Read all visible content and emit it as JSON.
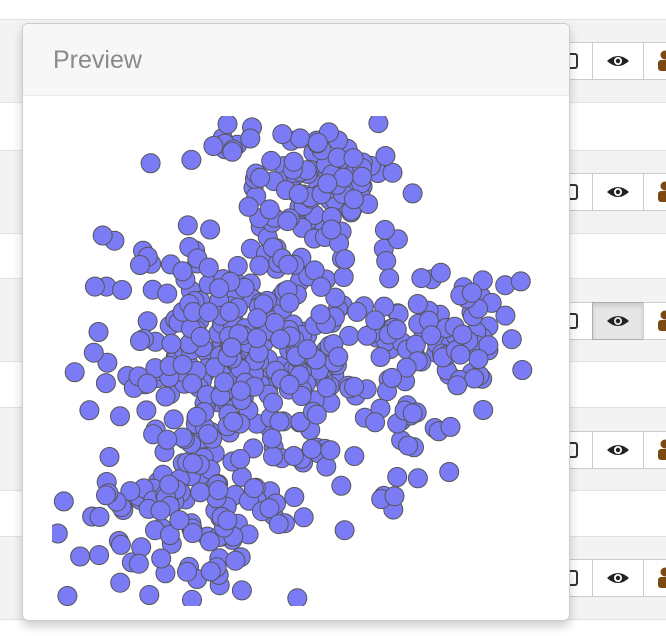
{
  "popover": {
    "title": "Preview"
  },
  "colors": {
    "point_fill": "#7b7bf5",
    "point_stroke": "#555555",
    "row_band": "#f3f3f3"
  },
  "row_actions": [
    {
      "icons": [
        "square-icon",
        "eye-icon",
        "person-icon"
      ],
      "active": false
    },
    {
      "icons": [
        "square-icon",
        "eye-icon",
        "person-icon"
      ],
      "active": false
    },
    {
      "icons": [
        "square-icon",
        "eye-icon",
        "person-icon"
      ],
      "active": true
    },
    {
      "icons": [
        "square-icon",
        "eye-icon",
        "person-icon"
      ],
      "active": false
    },
    {
      "icons": [
        "square-icon",
        "eye-icon",
        "person-icon"
      ],
      "active": false
    }
  ],
  "chart_data": {
    "type": "scatter",
    "title": "",
    "xlabel": "",
    "ylabel": "",
    "grid": false,
    "legend": "none",
    "xlim": [
      0,
      100
    ],
    "ylim": [
      0,
      100
    ],
    "clusters": [
      {
        "cx": 40,
        "cy": 52,
        "sx": 13,
        "sy": 11,
        "n": 330
      },
      {
        "cx": 55,
        "cy": 85,
        "sx": 8,
        "sy": 7,
        "n": 110
      },
      {
        "cx": 80,
        "cy": 55,
        "sx": 9,
        "sy": 7,
        "n": 80
      },
      {
        "cx": 30,
        "cy": 20,
        "sx": 12,
        "sy": 9,
        "n": 130
      },
      {
        "cx": 70,
        "cy": 35,
        "sx": 6,
        "sy": 6,
        "n": 25
      },
      {
        "cx": 37,
        "cy": 95,
        "sx": 3,
        "sy": 3,
        "n": 12
      }
    ]
  }
}
